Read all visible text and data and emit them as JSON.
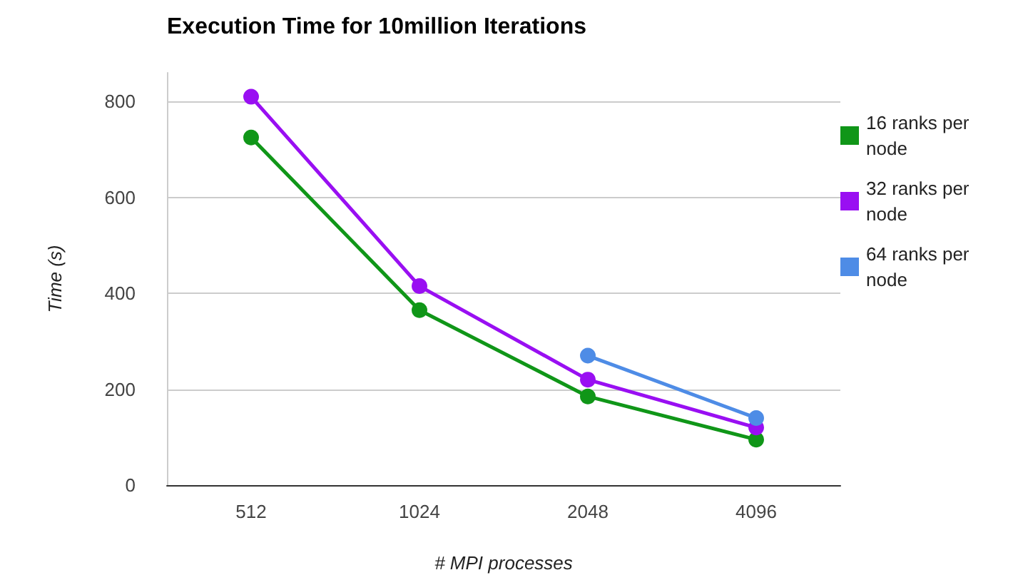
{
  "chart_data": {
    "type": "line",
    "title": "Execution Time for 10million Iterations",
    "xlabel": "# MPI processes",
    "ylabel": "Time (s)",
    "categories": [
      "512",
      "1024",
      "2048",
      "4096"
    ],
    "series": [
      {
        "name": "16 ranks per node",
        "color": "#109618",
        "values": [
          725,
          365,
          185,
          95
        ]
      },
      {
        "name": "32 ranks per node",
        "color": "#990ff2",
        "values": [
          810,
          415,
          220,
          120
        ]
      },
      {
        "name": "64 ranks per node",
        "color": "#4e8ce6",
        "values": [
          null,
          null,
          270,
          140
        ]
      }
    ],
    "ylim": [
      0,
      860
    ],
    "yticks": [
      0,
      200,
      400,
      600,
      800
    ],
    "grid": "y",
    "legend": "right",
    "marker": "circle",
    "line_style": "solid"
  }
}
